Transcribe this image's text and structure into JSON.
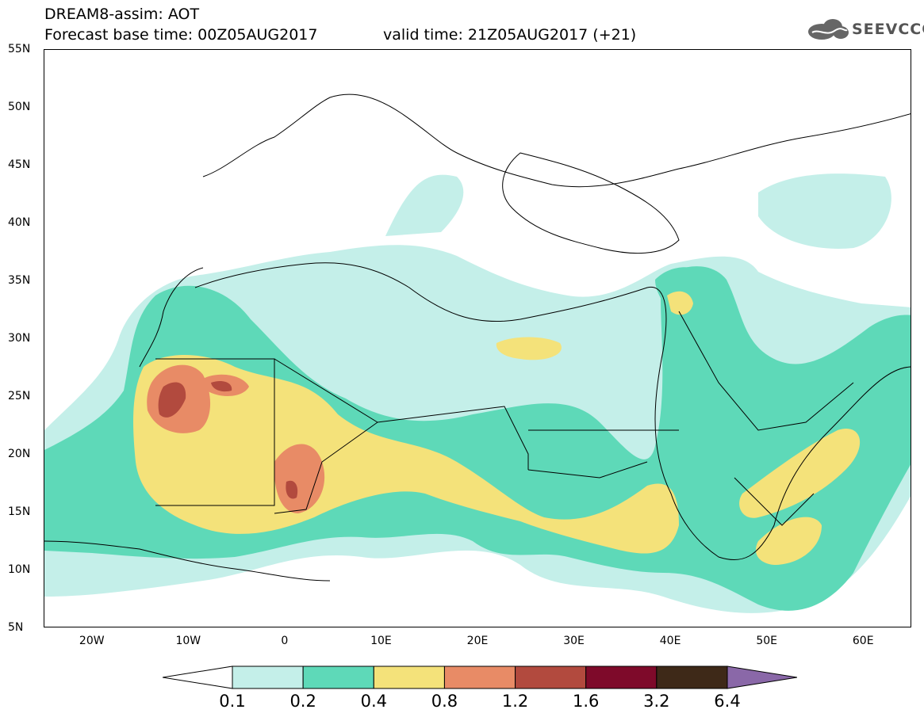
{
  "header": {
    "title": "DREAM8-assim: AOT",
    "base_time": "Forecast base time: 00Z05AUG2017",
    "valid_time": "valid time: 21Z05AUG2017 (+21)"
  },
  "logo": {
    "text": "SEEVCCC",
    "icon": "cloud-icon"
  },
  "map": {
    "lat_labels": [
      "55N",
      "50N",
      "45N",
      "40N",
      "35N",
      "30N",
      "25N",
      "20N",
      "15N",
      "10N",
      "5N"
    ],
    "lon_labels": [
      "20W",
      "10W",
      "0",
      "10E",
      "20E",
      "30E",
      "40E",
      "50E",
      "60E"
    ],
    "extent": {
      "lon_min": -25,
      "lon_max": 65,
      "lat_min": 5,
      "lat_max": 55
    }
  },
  "colorbar": {
    "labels": [
      "0.1",
      "0.2",
      "0.4",
      "0.8",
      "1.2",
      "1.6",
      "3.2",
      "6.4"
    ],
    "colors": [
      "#ffffff",
      "#c4efe9",
      "#5ed9b8",
      "#f4e27a",
      "#e88b66",
      "#b24a3e",
      "#7e0a2a",
      "#3e2918",
      "#8a68a8"
    ]
  }
}
